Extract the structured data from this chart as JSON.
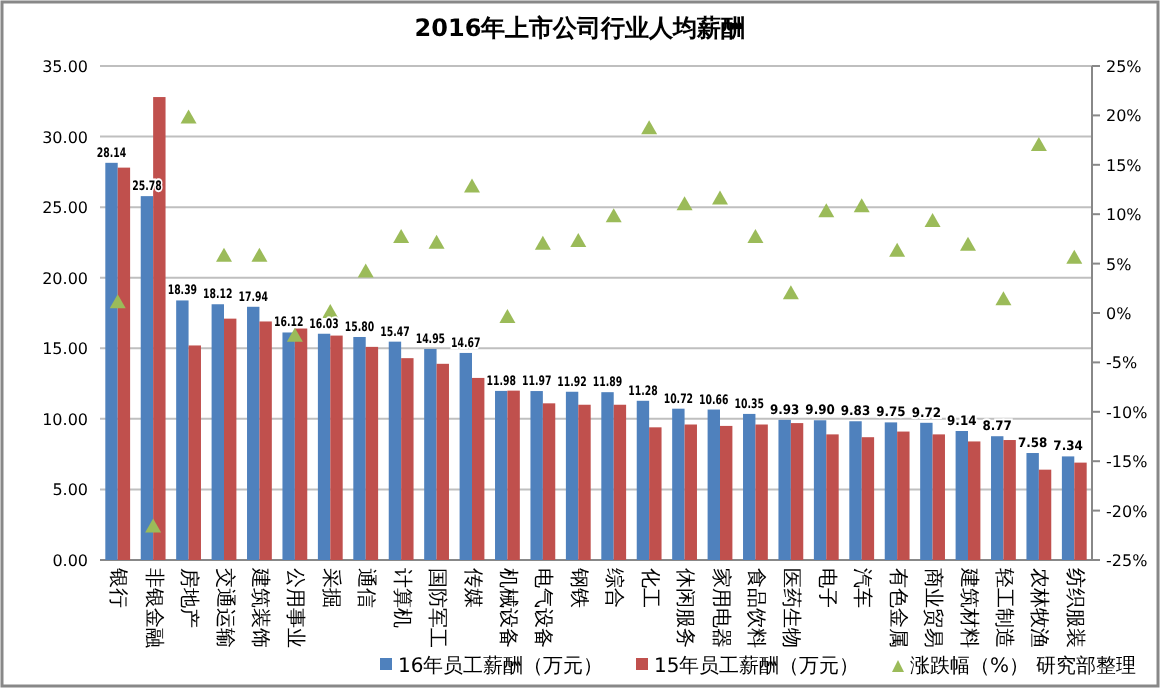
{
  "chart_data": {
    "type": "bar",
    "title": "2016年上市公司行业人均薪酬",
    "categories": [
      "银行",
      "非银金融",
      "房地产",
      "交通运输",
      "建筑装饰",
      "公用事业",
      "采掘",
      "通信",
      "计算机",
      "国防军工",
      "传媒",
      "机械设备",
      "电气设备",
      "钢铁",
      "综合",
      "化工",
      "休闲服务",
      "家用电器",
      "食品饮料",
      "医药生物",
      "电子",
      "汽车",
      "有色金属",
      "商业贸易",
      "建筑材料",
      "轻工制造",
      "农林牧渔",
      "纺织服装"
    ],
    "series": [
      {
        "name": "16年员工薪酬（万元）",
        "type": "bar",
        "color": "#4f81bd",
        "values": [
          28.14,
          25.78,
          18.39,
          18.12,
          17.94,
          16.12,
          16.03,
          15.8,
          15.47,
          14.95,
          14.67,
          11.98,
          11.97,
          11.92,
          11.89,
          11.28,
          10.72,
          10.66,
          10.35,
          9.93,
          9.9,
          9.83,
          9.75,
          9.72,
          9.14,
          8.77,
          7.58,
          7.34
        ],
        "value_labels": [
          "28.14",
          "25.78",
          "18.39",
          "18.12",
          "17.94",
          "16.12",
          "16.03",
          "15.80",
          "15.47",
          "14.95",
          "14.67",
          "11.98",
          "11.97",
          "11.92",
          "11.89",
          "11.28",
          "10.72",
          "10.66",
          "10.35",
          "9.93",
          "9.90",
          "9.83",
          "9.75",
          "9.72",
          "9.14",
          "8.77",
          "7.58",
          "7.34"
        ]
      },
      {
        "name": "15年员工薪酬（万元）",
        "type": "bar",
        "color": "#c0504d",
        "values": [
          27.8,
          32.8,
          15.2,
          17.1,
          16.9,
          16.4,
          15.9,
          15.1,
          14.3,
          13.9,
          12.9,
          12.0,
          11.1,
          11.0,
          11.0,
          9.4,
          9.6,
          9.5,
          9.6,
          9.7,
          8.9,
          8.7,
          9.1,
          8.9,
          8.4,
          8.5,
          6.4,
          6.9
        ]
      },
      {
        "name": "涨跌幅（%）",
        "type": "scatter",
        "axis": "y2",
        "marker": "triangle",
        "color": "#9bbb59",
        "values": [
          1.1,
          -21.6,
          19.8,
          5.8,
          5.8,
          -2.3,
          0.1,
          4.2,
          7.7,
          7.1,
          12.8,
          -0.4,
          7.0,
          7.3,
          9.8,
          18.7,
          11.0,
          11.6,
          7.7,
          2.0,
          10.3,
          10.8,
          6.3,
          9.3,
          6.9,
          1.4,
          17.0,
          5.6
        ]
      }
    ],
    "ylim": [
      0,
      35
    ],
    "yticks": [
      {
        "value": 0,
        "label": "0.00"
      },
      {
        "value": 5,
        "label": "5.00"
      },
      {
        "value": 10,
        "label": "10.00"
      },
      {
        "value": 15,
        "label": "15.00"
      },
      {
        "value": 20,
        "label": "20.00"
      },
      {
        "value": 25,
        "label": "25.00"
      },
      {
        "value": 30,
        "label": "30.00"
      },
      {
        "value": 35,
        "label": "35.00"
      }
    ],
    "y2lim": [
      -25,
      25
    ],
    "y2ticks": [
      {
        "value": -25,
        "label": "-25%"
      },
      {
        "value": -20,
        "label": "-20%"
      },
      {
        "value": -15,
        "label": "-15%"
      },
      {
        "value": -10,
        "label": "-10%"
      },
      {
        "value": -5,
        "label": "-5%"
      },
      {
        "value": 0,
        "label": "0%"
      },
      {
        "value": 5,
        "label": "5%"
      },
      {
        "value": 10,
        "label": "10%"
      },
      {
        "value": 15,
        "label": "15%"
      },
      {
        "value": 20,
        "label": "20%"
      },
      {
        "value": 25,
        "label": "25%"
      }
    ],
    "grid": "y",
    "legend": "bottom",
    "annotations": [
      "研究部整理"
    ]
  }
}
